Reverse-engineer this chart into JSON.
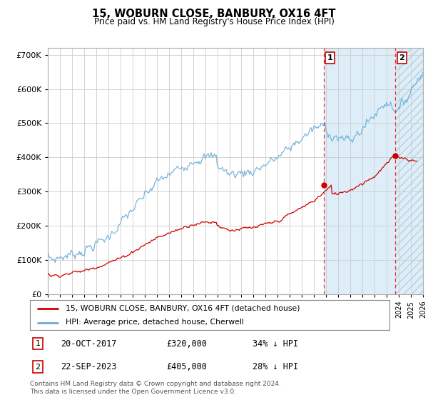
{
  "title": "15, WOBURN CLOSE, BANBURY, OX16 4FT",
  "subtitle": "Price paid vs. HM Land Registry's House Price Index (HPI)",
  "x_start_year": 1995,
  "x_end_year": 2026,
  "ylim": [
    0,
    720000
  ],
  "yticks": [
    0,
    100000,
    200000,
    300000,
    400000,
    500000,
    600000,
    700000
  ],
  "ytick_labels": [
    "£0",
    "£100K",
    "£200K",
    "£300K",
    "£400K",
    "£500K",
    "£600K",
    "£700K"
  ],
  "hpi_color": "#6baed6",
  "price_color": "#cc0000",
  "vline_color": "#ee3333",
  "marker1_year": 2017.8,
  "marker1_price": 320000,
  "marker2_year": 2023.73,
  "marker2_price": 405000,
  "legend_house": "15, WOBURN CLOSE, BANBURY, OX16 4FT (detached house)",
  "legend_hpi": "HPI: Average price, detached house, Cherwell",
  "note1_date": "20-OCT-2017",
  "note1_price": "£320,000",
  "note1_hpi": "34% ↓ HPI",
  "note2_date": "22-SEP-2023",
  "note2_price": "£405,000",
  "note2_hpi": "28% ↓ HPI",
  "footer": "Contains HM Land Registry data © Crown copyright and database right 2024.\nThis data is licensed under the Open Government Licence v3.0."
}
